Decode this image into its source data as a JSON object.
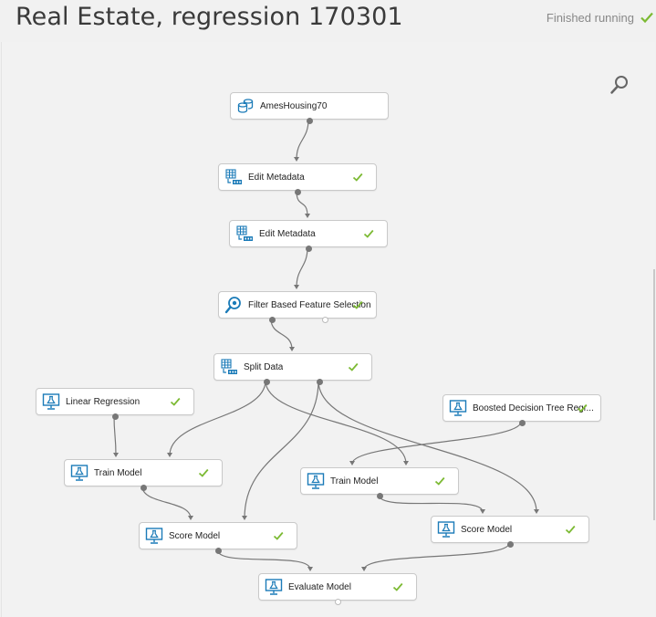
{
  "header": {
    "title": "Real Estate, regression 170301",
    "status": "Finished running"
  },
  "colors": {
    "accent": "#1b7bb8",
    "check": "#7cba33",
    "edge": "#777777"
  },
  "modules": {
    "ames": {
      "label": "AmesHousing70",
      "icon": "dataset-icon",
      "done": false
    },
    "meta1": {
      "label": "Edit Metadata",
      "icon": "edit-metadata-icon",
      "done": true
    },
    "meta2": {
      "label": "Edit Metadata",
      "icon": "edit-metadata-icon",
      "done": true
    },
    "filter": {
      "label": "Filter Based Feature Selection",
      "icon": "feature-selection-icon",
      "done": true
    },
    "split": {
      "label": "Split Data",
      "icon": "split-data-icon",
      "done": true
    },
    "linreg": {
      "label": "Linear Regression",
      "icon": "model-icon",
      "done": true
    },
    "boosted": {
      "label": "Boosted Decision Tree Regr...",
      "icon": "model-icon",
      "done": true
    },
    "train1": {
      "label": "Train Model",
      "icon": "model-icon",
      "done": true
    },
    "train2": {
      "label": "Train Model",
      "icon": "model-icon",
      "done": true
    },
    "score1": {
      "label": "Score Model",
      "icon": "model-icon",
      "done": true
    },
    "score2": {
      "label": "Score Model",
      "icon": "model-icon",
      "done": true
    },
    "evaluate": {
      "label": "Evaluate Model",
      "icon": "model-icon",
      "done": true
    }
  },
  "connections": [
    [
      "ames",
      "meta1"
    ],
    [
      "meta1",
      "meta2"
    ],
    [
      "meta2",
      "filter"
    ],
    [
      "filter",
      "split"
    ],
    [
      "linreg",
      "train1"
    ],
    [
      "split",
      "train1"
    ],
    [
      "split",
      "train2"
    ],
    [
      "boosted",
      "train2"
    ],
    [
      "train1",
      "score1"
    ],
    [
      "split",
      "score1"
    ],
    [
      "train2",
      "score2"
    ],
    [
      "split",
      "score2"
    ],
    [
      "score1",
      "evaluate"
    ],
    [
      "score2",
      "evaluate"
    ]
  ]
}
